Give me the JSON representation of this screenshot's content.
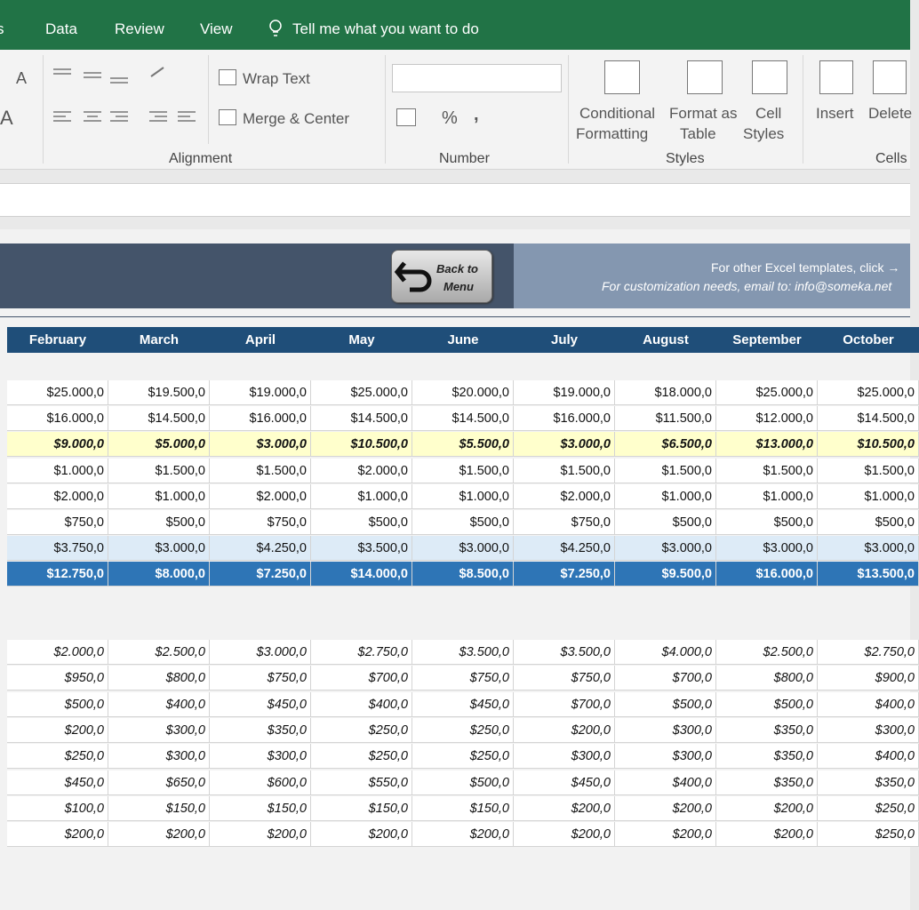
{
  "tabs": [
    "s",
    "Data",
    "Review",
    "View"
  ],
  "tell_me": "Tell me what you want to do",
  "ribbon": {
    "font_glyphs": [
      "A",
      "A"
    ],
    "wrap_text": "Wrap Text",
    "merge_center": "Merge & Center",
    "alignment": "Alignment",
    "percent": "%",
    "comma": ",",
    "number": "Number",
    "conditional_formatting": [
      "Conditional",
      "Formatting"
    ],
    "format_as_table": [
      "Format as",
      "Table"
    ],
    "cell_styles": [
      "Cell",
      "Styles"
    ],
    "styles": "Styles",
    "insert": "Insert",
    "delete": "Delete",
    "cells": "Cells"
  },
  "banner": {
    "button": [
      "Back to",
      "Menu"
    ],
    "line1": "For other Excel templates, click →",
    "line2": "For customization needs, email to: info@someka.net"
  },
  "table": {
    "months": [
      "February",
      "March",
      "April",
      "May",
      "June",
      "July",
      "August",
      "September",
      "October"
    ],
    "income_rows": [
      [
        "$25.000,0",
        "$19.500,0",
        "$19.000,0",
        "$25.000,0",
        "$20.000,0",
        "$19.000,0",
        "$18.000,0",
        "$25.000,0",
        "$25.000,0"
      ],
      [
        "$16.000,0",
        "$14.500,0",
        "$16.000,0",
        "$14.500,0",
        "$14.500,0",
        "$16.000,0",
        "$11.500,0",
        "$12.000,0",
        "$14.500,0"
      ],
      [
        "$9.000,0",
        "$5.000,0",
        "$3.000,0",
        "$10.500,0",
        "$5.500,0",
        "$3.000,0",
        "$6.500,0",
        "$13.000,0",
        "$10.500,0"
      ],
      [
        "$1.000,0",
        "$1.500,0",
        "$1.500,0",
        "$2.000,0",
        "$1.500,0",
        "$1.500,0",
        "$1.500,0",
        "$1.500,0",
        "$1.500,0"
      ],
      [
        "$2.000,0",
        "$1.000,0",
        "$2.000,0",
        "$1.000,0",
        "$1.000,0",
        "$2.000,0",
        "$1.000,0",
        "$1.000,0",
        "$1.000,0"
      ],
      [
        "$750,0",
        "$500,0",
        "$750,0",
        "$500,0",
        "$500,0",
        "$750,0",
        "$500,0",
        "$500,0",
        "$500,0"
      ],
      [
        "$3.750,0",
        "$3.000,0",
        "$4.250,0",
        "$3.500,0",
        "$3.000,0",
        "$4.250,0",
        "$3.000,0",
        "$3.000,0",
        "$3.000,0"
      ],
      [
        "$12.750,0",
        "$8.000,0",
        "$7.250,0",
        "$14.000,0",
        "$8.500,0",
        "$7.250,0",
        "$9.500,0",
        "$16.000,0",
        "$13.500,0"
      ]
    ],
    "expense_rows": [
      [
        "$2.000,0",
        "$2.500,0",
        "$3.000,0",
        "$2.750,0",
        "$3.500,0",
        "$3.500,0",
        "$4.000,0",
        "$2.500,0",
        "$2.750,0"
      ],
      [
        "$950,0",
        "$800,0",
        "$750,0",
        "$700,0",
        "$750,0",
        "$750,0",
        "$700,0",
        "$800,0",
        "$900,0"
      ],
      [
        "$500,0",
        "$400,0",
        "$450,0",
        "$400,0",
        "$450,0",
        "$700,0",
        "$500,0",
        "$500,0",
        "$400,0"
      ],
      [
        "$200,0",
        "$300,0",
        "$350,0",
        "$250,0",
        "$250,0",
        "$200,0",
        "$300,0",
        "$350,0",
        "$300,0"
      ],
      [
        "$250,0",
        "$300,0",
        "$300,0",
        "$250,0",
        "$250,0",
        "$300,0",
        "$300,0",
        "$350,0",
        "$400,0"
      ],
      [
        "$450,0",
        "$650,0",
        "$600,0",
        "$550,0",
        "$500,0",
        "$450,0",
        "$400,0",
        "$350,0",
        "$350,0"
      ],
      [
        "$100,0",
        "$150,0",
        "$150,0",
        "$150,0",
        "$150,0",
        "$200,0",
        "$200,0",
        "$200,0",
        "$250,0"
      ],
      [
        "$200,0",
        "$200,0",
        "$200,0",
        "$200,0",
        "$200,0",
        "$200,0",
        "$200,0",
        "$200,0",
        "$250,0"
      ]
    ]
  }
}
